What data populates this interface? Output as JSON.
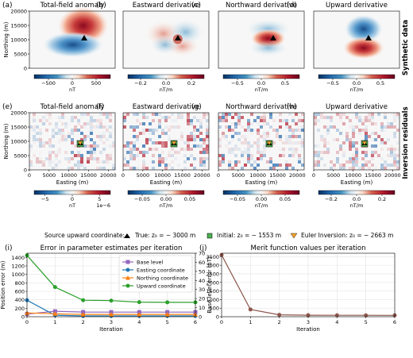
{
  "row1": {
    "panels": [
      {
        "letter": "(a)",
        "title": "Total-field anomaly",
        "cb_unit": "nT",
        "cb_ticks": [
          "−500",
          "0",
          "500"
        ],
        "cb_range": [
          -800,
          800
        ],
        "kind": "tf"
      },
      {
        "letter": "(b)",
        "title": "Eastward derivative",
        "cb_unit": "nT/m",
        "cb_ticks": [
          "−0.2",
          "0.0",
          "0.2"
        ],
        "cb_range": [
          -0.3,
          0.3
        ],
        "kind": "ex"
      },
      {
        "letter": "(c)",
        "title": "Northward derivative",
        "cb_unit": "nT/m",
        "cb_ticks": [
          "−0.5",
          "0.0",
          "0.5"
        ],
        "cb_range": [
          -0.8,
          0.8
        ],
        "kind": "ny"
      },
      {
        "letter": "(d)",
        "title": "Upward derivative",
        "cb_unit": "nT/m",
        "cb_ticks": [
          "−0.5",
          "0.0",
          "0.5"
        ],
        "cb_range": [
          -0.8,
          0.8
        ],
        "kind": "up"
      }
    ],
    "side_label": "Synthetic data",
    "ylabel": "Northing (m)",
    "yticks": [
      "0",
      "5000",
      "10000",
      "15000",
      "20000"
    ]
  },
  "row2": {
    "panels": [
      {
        "letter": "(e)",
        "title": "Total-field anomaly",
        "cb_unit": "nT",
        "cb_ticks": [
          "−5",
          "0",
          "5"
        ],
        "cb_exp": "1e−6",
        "cb_range": [
          -7,
          7
        ]
      },
      {
        "letter": "(f)",
        "title": "Eastward derivative",
        "cb_unit": "nT/m",
        "cb_ticks": [
          "−0.05",
          "0.00",
          "0.05"
        ],
        "cb_range": [
          -0.08,
          0.08
        ]
      },
      {
        "letter": "(g)",
        "title": "Northward derivative",
        "cb_unit": "nT/m",
        "cb_ticks": [
          "−0.05",
          "0.00",
          "0.05"
        ],
        "cb_range": [
          -0.08,
          0.08
        ]
      },
      {
        "letter": "(h)",
        "title": "Upward derivative",
        "cb_unit": "nT/m",
        "cb_ticks": [
          "−0.2",
          "0.0",
          "0.2"
        ],
        "cb_range": [
          -0.3,
          0.3
        ]
      }
    ],
    "side_label": "Inversion residuals",
    "ylabel": "Northing (m)",
    "xlabel": "Easting (m)",
    "yticks": [
      "0",
      "5000",
      "10000",
      "15000",
      "20000"
    ],
    "xticks": [
      "0",
      "5000",
      "10000",
      "15000",
      "20000"
    ]
  },
  "legend": {
    "title": "Source upward coordinate:",
    "items": [
      {
        "label": "True: z₀ = − 3000 m",
        "marker": "triangle",
        "color": "#000000"
      },
      {
        "label": "Initial: z₀ = − 1553 m",
        "marker": "square",
        "color": "#4caf50"
      },
      {
        "label": "Euler Inversion: z₀ = − 2663 m",
        "marker": "triangle-down",
        "color": "#f0a030"
      }
    ]
  },
  "chart_data": [
    {
      "type": "line",
      "letter": "(i)",
      "title": "Error in parameter estimates per iteration",
      "xlabel": "Iteration",
      "ylabel": "Position error (m)",
      "ylabel_right": "Base level error (nT)",
      "x": [
        0,
        1,
        2,
        3,
        4,
        5,
        6
      ],
      "xlim": [
        0,
        6
      ],
      "ylim": [
        0,
        1500
      ],
      "ylim_right": [
        0,
        70
      ],
      "yticks": [
        0,
        200,
        400,
        600,
        800,
        1000,
        1200,
        1400
      ],
      "yticks_right": [
        0,
        10,
        20,
        30,
        40,
        50,
        60,
        70
      ],
      "legend_position": "upper right",
      "series": [
        {
          "name": "Base level",
          "axis": "right",
          "color": "#9467bd",
          "marker": "square",
          "values": [
            3,
            6,
            5.2,
            5.1,
            5.1,
            5.1,
            5.1
          ]
        },
        {
          "name": "Easting coordinate",
          "axis": "left",
          "color": "#1f77b4",
          "marker": "circle",
          "values": [
            390,
            35,
            18,
            18,
            18,
            18,
            18
          ]
        },
        {
          "name": "Northing coordinate",
          "axis": "left",
          "color": "#ff7f0e",
          "marker": "triangle",
          "values": [
            90,
            70,
            55,
            55,
            55,
            55,
            55
          ]
        },
        {
          "name": "Upward coordinate",
          "axis": "left",
          "color": "#2ca02c",
          "marker": "circle",
          "values": [
            1450,
            700,
            390,
            380,
            345,
            340,
            340
          ]
        }
      ]
    },
    {
      "type": "line",
      "letter": "(j)",
      "title": "Merit function values per iteration",
      "xlabel": "Iteration",
      "x": [
        0,
        1,
        2,
        3,
        4,
        5,
        6
      ],
      "xlim": [
        0,
        6
      ],
      "ylim": [
        0,
        3700
      ],
      "yticks": [
        0,
        500,
        1000,
        1500,
        2000,
        2500,
        3000,
        3500
      ],
      "series": [
        {
          "color": "#8c564b",
          "marker": "circle",
          "values": [
            3600,
            420,
            110,
            90,
            85,
            82,
            80
          ]
        }
      ]
    }
  ]
}
